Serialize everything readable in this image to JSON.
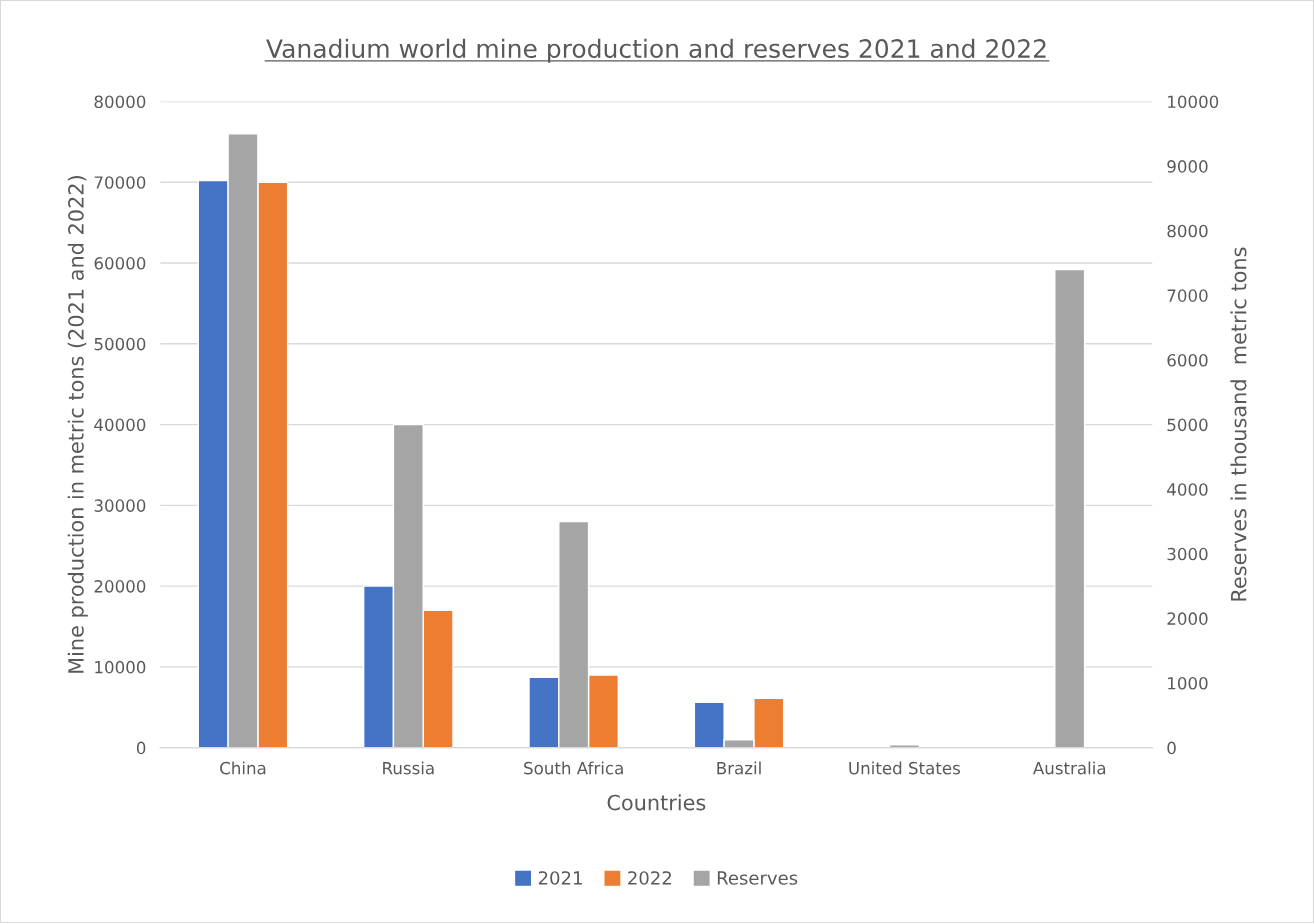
{
  "chart_data": {
    "type": "bar",
    "title": "Vanadium world mine production and reserves 2021 and 2022",
    "xlabel": "Countries",
    "ylabel": "Mine production in metric tons (2021 and 2022)",
    "y2label": "Reserves in thousand  metric tons",
    "categories": [
      "China",
      "Russia",
      "South Africa",
      "Brazil",
      "United States",
      "Australia"
    ],
    "series": [
      {
        "name": "2021",
        "color": "#4472c4",
        "values": [
          70200,
          20000,
          8700,
          5600,
          null,
          null
        ]
      },
      {
        "name": "2022",
        "color": "#ed7d31",
        "values": [
          70000,
          17000,
          9000,
          6100,
          null,
          null
        ]
      },
      {
        "name": "Reserves",
        "color": "#a5a5a5",
        "axis": "y2",
        "values": [
          9500,
          5000,
          3500,
          120,
          45,
          7400
        ]
      }
    ],
    "ylim": [
      0,
      80000
    ],
    "yticks": [
      0,
      10000,
      20000,
      30000,
      40000,
      50000,
      60000,
      70000,
      80000
    ],
    "y2lim": [
      0,
      10000
    ],
    "y2ticks": [
      0,
      1000,
      2000,
      3000,
      4000,
      5000,
      6000,
      7000,
      8000,
      9000,
      10000
    ],
    "grid": "y",
    "legend": "bottom"
  }
}
